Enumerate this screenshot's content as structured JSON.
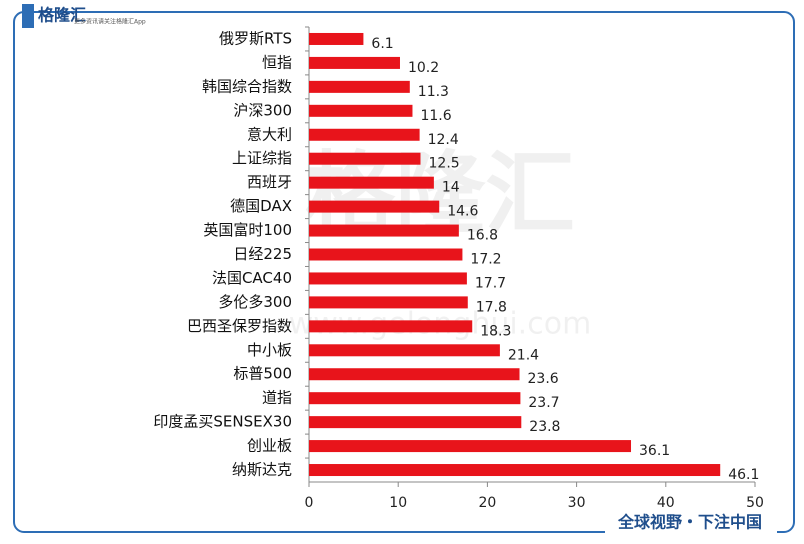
{
  "chart_data": {
    "type": "bar",
    "orientation": "horizontal",
    "categories": [
      "俄罗斯RTS",
      "恒指",
      "韩国综合指数",
      "沪深300",
      "意大利",
      "上证综指",
      "西班牙",
      "德国DAX",
      "英国富时100",
      "日经225",
      "法国CAC40",
      "多伦多300",
      "巴西圣保罗指数",
      "中小板",
      "标普500",
      "道指",
      "印度孟买SENSEX30",
      "创业板",
      "纳斯达克"
    ],
    "values": [
      6.1,
      10.2,
      11.3,
      11.6,
      12.4,
      12.5,
      14,
      14.6,
      16.8,
      17.2,
      17.7,
      17.8,
      18.3,
      21.4,
      23.6,
      23.7,
      23.8,
      36.1,
      46.1
    ],
    "color": "#e8141b",
    "xlim": [
      0,
      50
    ],
    "xticks": [
      0,
      10,
      20,
      30,
      40,
      50
    ],
    "grid": false
  },
  "branding": {
    "logo": "格隆汇",
    "tagline": "更多资讯请关注格隆汇App",
    "site": "www.gelonghui.com",
    "footer": "全球视野・下注中国"
  }
}
